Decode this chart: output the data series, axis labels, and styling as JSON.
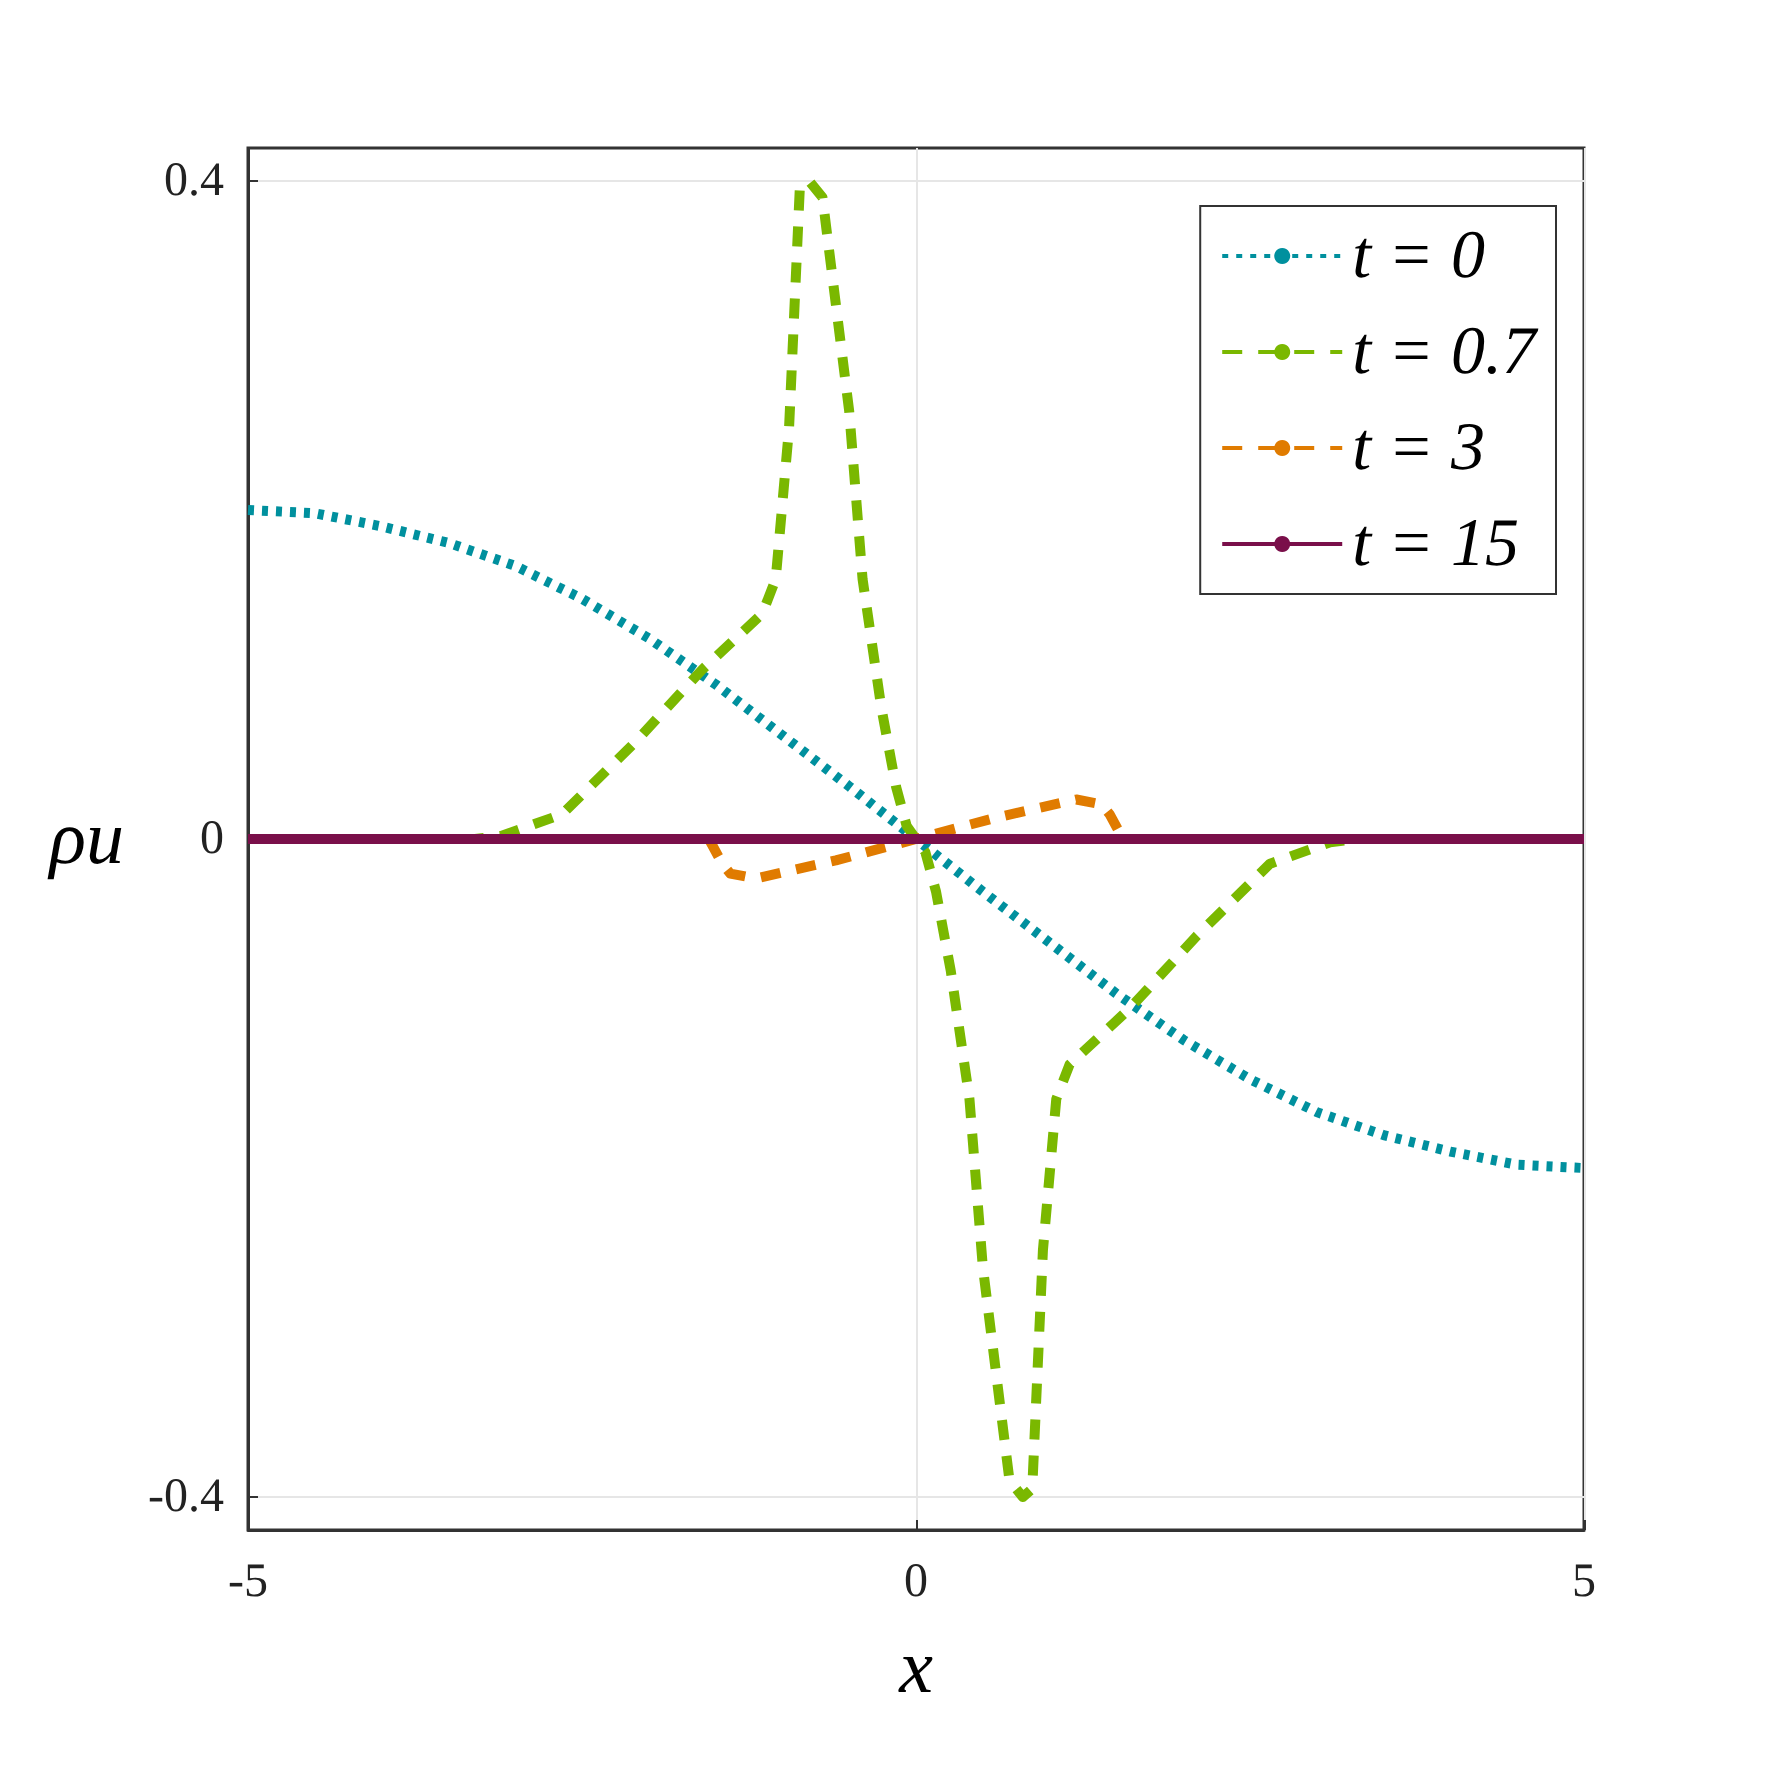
{
  "chart_data": {
    "type": "line",
    "xlabel": "x",
    "ylabel": "ρu",
    "xlim": [
      -5,
      5
    ],
    "ylim": [
      -0.42,
      0.42
    ],
    "xticks": [
      -5,
      0,
      5
    ],
    "yticks": [
      -0.4,
      0,
      0.4
    ],
    "grid": true,
    "legend": "top right",
    "marker": "none",
    "series": [
      {
        "name": "t = 0",
        "color": "#00909e",
        "line_style": "dotted",
        "x": [
          -5,
          -4.5,
          -4,
          -3.5,
          -3,
          -2.5,
          -2,
          -1.5,
          -1,
          -0.5,
          0,
          0.5,
          1,
          1.5,
          2,
          2.5,
          3,
          3.5,
          4,
          4.5,
          5
        ],
        "values": [
          0.2,
          0.198,
          0.19,
          0.18,
          0.166,
          0.146,
          0.122,
          0.094,
          0.063,
          0.032,
          0,
          -0.032,
          -0.063,
          -0.094,
          -0.122,
          -0.146,
          -0.166,
          -0.18,
          -0.19,
          -0.198,
          -0.2
        ]
      },
      {
        "name": "t = 0.7",
        "color": "#7ab800",
        "line_style": "dashed",
        "x": [
          -5,
          -3.3,
          -3.1,
          -2.65,
          -2.1,
          -1.6,
          -1.15,
          -1.05,
          -0.95,
          -0.87,
          -0.8,
          -0.7,
          -0.5,
          -0.4,
          -0.26,
          -0.15,
          -0.07,
          0,
          0.07,
          0.15,
          0.26,
          0.4,
          0.5,
          0.7,
          0.8,
          0.87,
          0.95,
          1.05,
          1.15,
          1.6,
          2.1,
          2.65,
          3.1,
          3.3,
          5
        ],
        "values": [
          0,
          0,
          0.002,
          0.015,
          0.059,
          0.103,
          0.137,
          0.158,
          0.25,
          0.395,
          0.4,
          0.39,
          0.26,
          0.158,
          0.08,
          0.032,
          0.008,
          0,
          -0.008,
          -0.032,
          -0.08,
          -0.158,
          -0.26,
          -0.39,
          -0.4,
          -0.395,
          -0.25,
          -0.158,
          -0.137,
          -0.103,
          -0.059,
          -0.015,
          -0.002,
          0,
          0
        ]
      },
      {
        "name": "t = 3",
        "color": "#e07b00",
        "line_style": "dashed",
        "x": [
          -1.55,
          -1.45,
          -1.39,
          -1.2,
          -0.6,
          0,
          0.6,
          1.2,
          1.39,
          1.45,
          1.55
        ],
        "values": [
          0,
          -0.015,
          -0.021,
          -0.024,
          -0.013,
          0,
          0.013,
          0.024,
          0.021,
          0.015,
          0
        ]
      },
      {
        "name": "t = 15",
        "color": "#7a0f4a",
        "line_style": "solid",
        "x": [
          -5,
          0,
          5
        ],
        "values": [
          0,
          0,
          0
        ]
      }
    ]
  }
}
